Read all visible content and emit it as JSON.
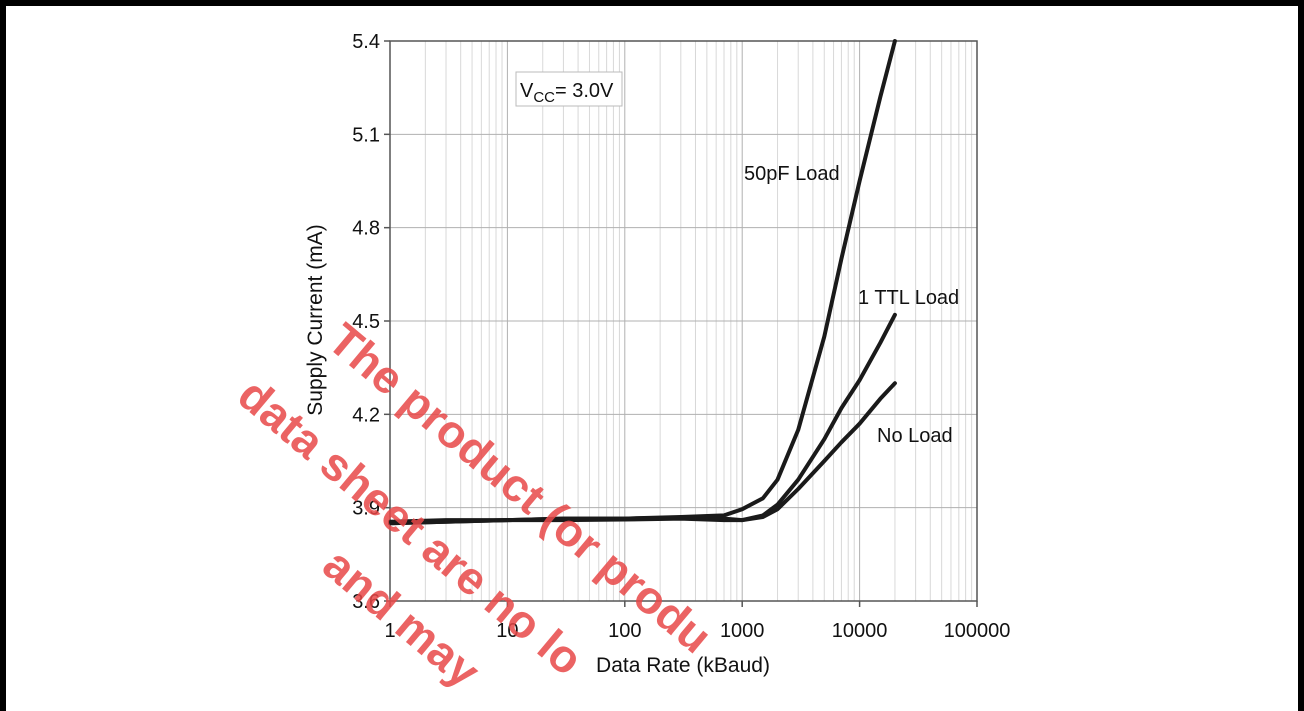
{
  "chart_data": {
    "type": "line",
    "xlabel": "Data Rate (kBaud)",
    "ylabel": "Supply Current (mA)",
    "xscale": "log",
    "xlim": [
      1,
      100000
    ],
    "ylim": [
      3.6,
      5.4
    ],
    "x_ticks": [
      "1",
      "10",
      "100",
      "1000",
      "10000",
      "100000"
    ],
    "y_ticks": [
      "3.6",
      "3.9",
      "4.2",
      "4.5",
      "4.8",
      "5.1",
      "5.4"
    ],
    "grid": true,
    "annotation_box": {
      "prefix": "V",
      "subscript": "CC",
      "suffix": "= 3.0V"
    },
    "series": [
      {
        "name": "50pF Load",
        "x": [
          1,
          3,
          10,
          30,
          100,
          300,
          700,
          1000,
          1500,
          2000,
          3000,
          5000,
          7000,
          10000,
          15000,
          20000
        ],
        "y": [
          3.85,
          3.855,
          3.86,
          3.865,
          3.865,
          3.87,
          3.875,
          3.895,
          3.93,
          3.99,
          4.15,
          4.45,
          4.7,
          4.95,
          5.22,
          5.4
        ]
      },
      {
        "name": "1 TTL Load",
        "x": [
          1,
          3,
          10,
          30,
          100,
          300,
          700,
          1000,
          1500,
          2000,
          3000,
          5000,
          7000,
          10000,
          15000,
          20000
        ],
        "y": [
          3.855,
          3.86,
          3.86,
          3.865,
          3.865,
          3.868,
          3.865,
          3.86,
          3.875,
          3.91,
          3.99,
          4.12,
          4.22,
          4.31,
          4.43,
          4.52
        ]
      },
      {
        "name": "No Load",
        "x": [
          1,
          3,
          10,
          30,
          100,
          300,
          700,
          1000,
          1500,
          2000,
          3000,
          5000,
          7000,
          10000,
          15000,
          20000
        ],
        "y": [
          3.85,
          3.855,
          3.86,
          3.86,
          3.862,
          3.865,
          3.86,
          3.86,
          3.87,
          3.895,
          3.96,
          4.05,
          4.11,
          4.17,
          4.25,
          4.3
        ]
      }
    ]
  },
  "watermark": {
    "lines": [
      "The product (or produ",
      "data sheet are no lo",
      "and may"
    ]
  }
}
